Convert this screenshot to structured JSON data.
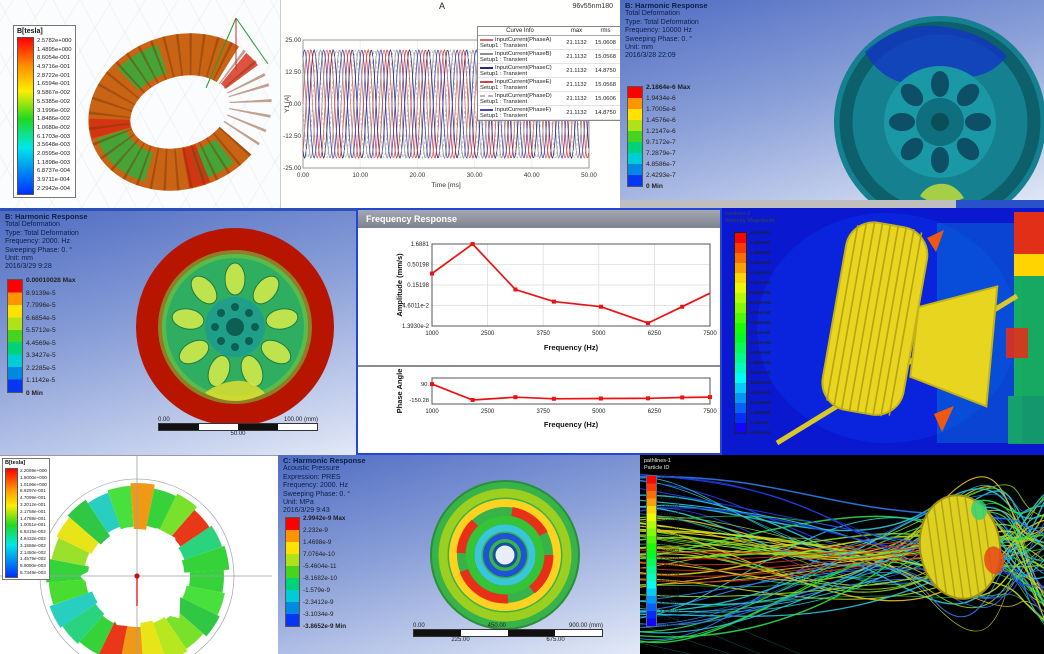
{
  "panels": {
    "torus": {
      "legend_title": "B[tesla]",
      "legend_values": [
        "2.5782e+000",
        "1.4895e+000",
        "8.6054e-001",
        "4.9716e-001",
        "2.8722e-001",
        "1.6594e-001",
        "9.5867e-002",
        "5.5385e-002",
        "3.1996e-002",
        "1.8486e-002",
        "1.0680e-002",
        "6.1703e-003",
        "3.5648e-003",
        "2.0595e-003",
        "1.1898e-003",
        "6.8737e-004",
        "3.9711e-004",
        "2.2942e-004"
      ]
    },
    "current_plot": {
      "title": "A",
      "corner_label": "96v55nm180",
      "y_axis_label": "Y1 [A]",
      "x_axis_label": "Time [ms]",
      "y_ticks": [
        "25.00",
        "12.50",
        "0.00",
        "-12.50",
        "-25.00"
      ],
      "x_ticks": [
        "0.00",
        "10.00",
        "20.00",
        "30.00",
        "40.00",
        "50.00"
      ],
      "legend_header": {
        "curve": "Curve Info",
        "max": "max",
        "rms": "rms"
      },
      "legend_rows": [
        {
          "name": "InputCurrent(PhaseA)",
          "setup": "Setup1 : Transient",
          "max": "21.1132",
          "rms": "15.0608",
          "color": "#d46a6a",
          "dash": false
        },
        {
          "name": "InputCurrent(PhaseB)",
          "setup": "Setup1 : Transient",
          "max": "21.1132",
          "rms": "15.0568",
          "color": "#8f8f8f",
          "dash": false
        },
        {
          "name": "InputCurrent(PhaseC)",
          "setup": "Setup1 : Transient",
          "max": "21.1132",
          "rms": "14.8750",
          "color": "#28287e",
          "dash": false
        },
        {
          "name": "InputCurrent(PhaseE)",
          "setup": "Setup1 : Transient",
          "max": "21.1132",
          "rms": "15.0568",
          "color": "#cc4444",
          "dash": false
        },
        {
          "name": "InputCurrent(PhaseD)",
          "setup": "Setup1 : Transient",
          "max": "21.1132",
          "rms": "15.0606",
          "color": "#b5b5b5",
          "dash": true
        },
        {
          "name": "InputCurrent(PhaseF)",
          "setup": "Setup1 : Transient",
          "max": "21.1132",
          "rms": "14.8750",
          "color": "#4646c0",
          "dash": false
        }
      ]
    },
    "harmonic_fine": {
      "header_lines": [
        "B: Harmonic Response",
        "Total Deformation",
        "Type: Total Deformation",
        "Frequency: 10000 Hz",
        "Sweeping Phase: 0. °",
        "Unit: mm",
        "2016/3/28 22:09"
      ],
      "legend_values": [
        "2.1864e-6 Max",
        "1.9434e-6",
        "1.7005e-6",
        "1.4576e-6",
        "1.2147e-6",
        "9.7172e-7",
        "7.2879e-7",
        "4.8586e-7",
        "2.4293e-7",
        "0 Min"
      ]
    },
    "harmonic_coarse": {
      "header_lines": [
        "B: Harmonic Response",
        "Total Deformation",
        "Type: Total Deformation",
        "Frequency: 2000. Hz",
        "Sweeping Phase: 0. °",
        "Unit: mm",
        "2016/3/29 9:28"
      ],
      "legend_values": [
        "0.00010028 Max",
        "8.9139e-5",
        "7.7996e-5",
        "6.6854e-5",
        "5.5712e-5",
        "4.4569e-5",
        "3.3427e-5",
        "2.2285e-5",
        "1.1142e-5",
        "0 Min"
      ],
      "ruler": {
        "start": "0.00",
        "end": "100.00 (mm)",
        "mid": "50.00"
      }
    },
    "freq_response": {
      "window_title": "Frequency Response",
      "amplitude_axis_label": "Amplitude (mm/s)",
      "phase_axis_label": "Phase Angle",
      "freq_axis_label": "Frequency (Hz)",
      "amplitude_y_ticks": [
        "1.6881",
        "0.50198",
        "0.15198",
        "4.6011e-2",
        "1.3930e-2"
      ],
      "phase_y_ticks": [
        "90.",
        "-150.28"
      ],
      "x_ticks": [
        "1000",
        "2500",
        "3750",
        "5000",
        "6250",
        "7500"
      ]
    },
    "cfd_velocity": {
      "legend_title_lines": [
        "contour-2",
        "Velocity Magnitude"
      ],
      "legend_values": [
        "1.42e+01",
        "1.35e+01",
        "1.28e+01",
        "1.21e+01",
        "1.14e+01",
        "1.07e+01",
        "9.95e+00",
        "9.24e+00",
        "8.53e+00",
        "7.82e+00",
        "7.11e+00",
        "6.40e+00",
        "5.69e+00",
        "4.98e+00",
        "4.27e+00",
        "3.56e+00",
        "2.84e+00",
        "2.13e+00",
        "1.42e+00",
        "7.11e-01",
        "0.00e+00"
      ]
    },
    "polar_field": {
      "legend_title": "B[tesla]",
      "legend_values": [
        "2.2069e+000",
        "1.5000e+000",
        "1.0196e+000",
        "6.9297e-001",
        "4.7099e-001",
        "3.2012e-001",
        "2.1758e-001",
        "1.4788e-001",
        "1.0051e-001",
        "6.8315e-002",
        "4.6432e-002",
        "3.1558e-002",
        "2.1450e-002",
        "1.4579e-002",
        "9.9090e-003",
        "6.7349e-003"
      ]
    },
    "acoustic_disc": {
      "header_lines": [
        "C: Harmonic Response",
        "Acoustic Pressure",
        "Expression: PRES",
        "Frequency: 2000. Hz",
        "Sweeping Phase: 0. °",
        "Unit: MPa",
        "2016/3/29 9:43"
      ],
      "legend_values": [
        "2.9942e-9 Max",
        "2.232e-9",
        "1.4698e-9",
        "7.0764e-10",
        "-5.4604e-11",
        "-8.1682e-10",
        "-1.579e-9",
        "-2.3412e-9",
        "-3.1034e-9",
        "-3.8652e-9 Min"
      ],
      "ruler": {
        "start": "0.00",
        "mid": "450.00",
        "end": "900.00 (mm)",
        "q1": "225.00",
        "q3": "675.00"
      }
    },
    "streamlines": {
      "legend_title_lines": [
        "pathlines-1",
        "Particle ID"
      ],
      "legend_values": [
        "4.89e+03",
        "4.64e+03",
        "4.40e+03",
        "4.15e+03",
        "3.91e+03",
        "3.67e+03",
        "3.42e+03",
        "3.18e+03",
        "2.93e+03",
        "2.69e+03",
        "2.44e+03",
        "2.20e+03",
        "1.96e+03",
        "1.71e+03",
        "1.47e+03",
        "1.22e+03",
        "9.78e+02",
        "7.33e+02",
        "4.89e+02",
        "2.44e+02",
        "0.00e+00"
      ]
    }
  },
  "chart_data": [
    {
      "id": "input-currents",
      "type": "line",
      "title": "A",
      "xlabel": "Time [ms]",
      "ylabel": "Y1 [A]",
      "xlim": [
        0,
        50
      ],
      "ylim": [
        -25,
        25
      ],
      "waveform": "sinusoid",
      "series": [
        {
          "name": "InputCurrent(PhaseA)",
          "amplitude": 21.1132,
          "period_ms": 3.333,
          "phase_deg": 0,
          "color": "#d46a6a",
          "dash": false
        },
        {
          "name": "InputCurrent(PhaseB)",
          "amplitude": 21.1132,
          "period_ms": 3.333,
          "phase_deg": 120,
          "color": "#8f8f8f",
          "dash": false
        },
        {
          "name": "InputCurrent(PhaseC)",
          "amplitude": 21.1132,
          "period_ms": 3.333,
          "phase_deg": 240,
          "color": "#28287e",
          "dash": false
        },
        {
          "name": "InputCurrent(PhaseE)",
          "amplitude": 21.1132,
          "period_ms": 3.333,
          "phase_deg": 300,
          "color": "#cc4444",
          "dash": false
        },
        {
          "name": "InputCurrent(PhaseD)",
          "amplitude": 21.1132,
          "period_ms": 3.333,
          "phase_deg": 180,
          "color": "#b5b5b5",
          "dash": true
        },
        {
          "name": "InputCurrent(PhaseF)",
          "amplitude": 21.1132,
          "period_ms": 3.333,
          "phase_deg": 60,
          "color": "#4646c0",
          "dash": false
        }
      ]
    },
    {
      "id": "frequency-response-amplitude",
      "type": "line",
      "ylog": true,
      "xlabel": "Frequency (Hz)",
      "ylabel": "Amplitude (mm/s)",
      "xlim": [
        1000,
        7500
      ],
      "ylim_log": [
        0.01393,
        1.6881
      ],
      "x": [
        1000,
        1950,
        2950,
        3850,
        4950,
        6050,
        6850,
        7500
      ],
      "y": [
        0.3,
        1.6881,
        0.118,
        0.058,
        0.043,
        0.0165,
        0.043,
        0.095
      ],
      "line_color": "#ee1111",
      "grid": true,
      "legend_position": "none"
    },
    {
      "id": "frequency-response-phase",
      "type": "line",
      "xlabel": "Frequency (Hz)",
      "ylabel": "Phase Angle",
      "xlim": [
        1000,
        7500
      ],
      "ylim": [
        -170,
        100
      ],
      "x": [
        1000,
        1950,
        2950,
        3850,
        4950,
        6050,
        6850,
        7500
      ],
      "y": [
        88,
        -150,
        -108,
        -132,
        -128,
        -125,
        -112,
        -106
      ],
      "line_color": "#ee1111",
      "grid": false,
      "legend_position": "none"
    }
  ],
  "colors": {
    "ansys_bg_top": "#4f6cc2",
    "ansys_bg_bottom": "#e3e9f7",
    "cfd_background": "#0a18cf",
    "response_line": "#ee1111",
    "band_colors_9": [
      "#fe0000",
      "#ff9400",
      "#ffe200",
      "#b0e21a",
      "#46d41e",
      "#00d278",
      "#00ccd8",
      "#0088e2",
      "#0636f4"
    ]
  }
}
